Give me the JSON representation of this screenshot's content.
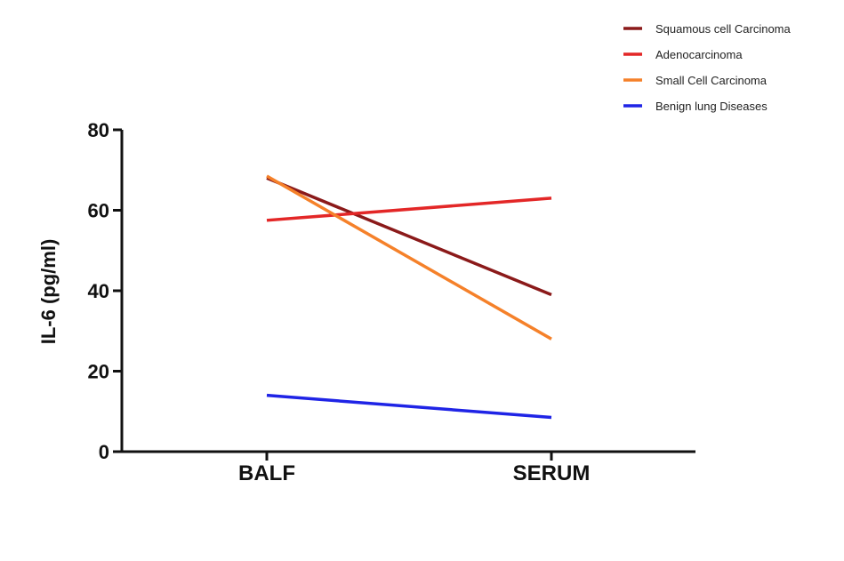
{
  "chart_data": {
    "type": "line",
    "categories": [
      "BALF",
      "SERUM"
    ],
    "ylabel": "IL-6 (pg/ml)",
    "ylim": [
      0,
      80
    ],
    "yticks": [
      0,
      20,
      40,
      60,
      80
    ],
    "grid": false,
    "legend_position": "top-right",
    "series": [
      {
        "name": "Squamous  cell Carcinoma",
        "values": [
          68,
          39
        ],
        "color": "#8b1a1a"
      },
      {
        "name": "Adenocarcinoma",
        "values": [
          57.5,
          63
        ],
        "color": "#e32727"
      },
      {
        "name": "Small Cell Carcinoma",
        "values": [
          68.5,
          28
        ],
        "color": "#f5812a"
      },
      {
        "name": "Benign lung Diseases",
        "values": [
          14,
          8.5
        ],
        "color": "#1f24e6"
      }
    ]
  }
}
